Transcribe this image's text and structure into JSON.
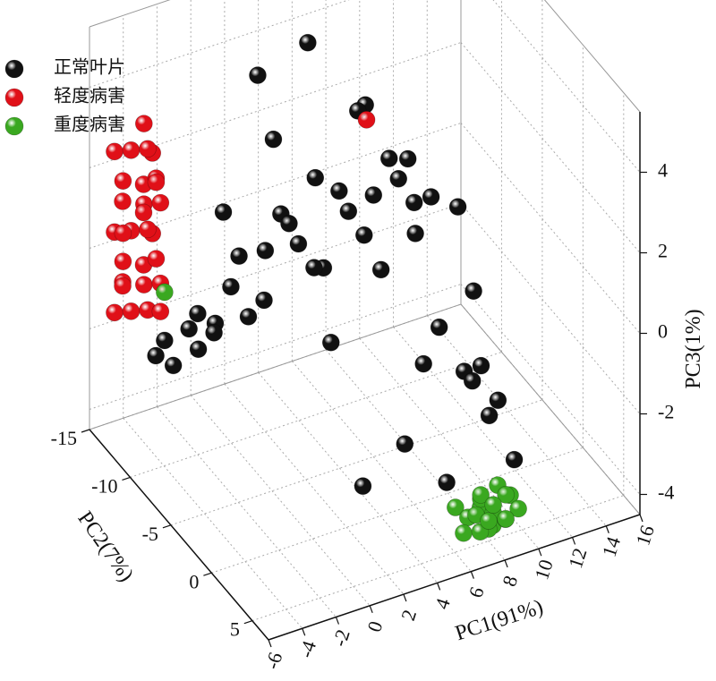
{
  "chart_data": {
    "type": "scatter3d",
    "x_label": "PC1(91%)",
    "y_label": "PC2(7%)",
    "z_label": "PC3(1%)",
    "xlim": [
      -6,
      16
    ],
    "ylim": [
      -15,
      7
    ],
    "zlim": [
      -4.5,
      5.5
    ],
    "xticks": [
      -6,
      -4,
      -2,
      0,
      2,
      4,
      6,
      8,
      10,
      12,
      14,
      16
    ],
    "yticks": [
      -15,
      -10,
      -5,
      0,
      5
    ],
    "zticks": [
      -4,
      -2,
      0,
      2,
      4
    ],
    "grid": true,
    "legend": "upper left",
    "series": [
      {
        "name": "正常叶片",
        "color": "#111111",
        "x": [
          -3,
          -2,
          -1,
          0,
          1,
          2,
          3,
          4,
          5,
          6,
          7,
          8,
          9,
          10,
          -2,
          0,
          2,
          4,
          6,
          8,
          -3,
          -1,
          1,
          3,
          5,
          7,
          9,
          -4,
          -2,
          0,
          2,
          4,
          6,
          8,
          10,
          -1,
          1,
          3,
          5,
          7,
          3,
          5,
          7,
          9,
          11,
          2,
          4,
          6,
          8,
          10
        ],
        "y": [
          -12,
          -10,
          -8,
          -11,
          -6,
          -9,
          -4,
          -7,
          -2,
          -5,
          0,
          -3,
          2,
          -1,
          -13,
          -12,
          -10,
          -8,
          -6,
          -4,
          -9,
          -7,
          -5,
          -3,
          -1,
          1,
          3,
          -11,
          -8,
          -6,
          -4,
          -2,
          0,
          2,
          4,
          -12,
          -10,
          -8,
          -6,
          -4,
          -13,
          -11,
          -9,
          -7,
          -5,
          2,
          3,
          4,
          3,
          2
        ],
        "z": [
          -2,
          -1,
          0,
          1,
          2,
          3,
          -1,
          0,
          1,
          2,
          3,
          -2,
          -1,
          0,
          -3,
          -2,
          0,
          2,
          4,
          1,
          -1,
          1,
          2,
          3,
          4,
          0,
          -2,
          -2,
          -1,
          0,
          1,
          2,
          3,
          -1,
          -3,
          -2.5,
          -1.5,
          0.5,
          1.5,
          2.5,
          3.5,
          4.5,
          3,
          2,
          1,
          -3,
          -2,
          -3,
          -1,
          -2
        ]
      },
      {
        "name": "轻度病害",
        "color": "#e01018",
        "x": [
          -5,
          -4.5,
          -4,
          -3.5,
          -3,
          -5,
          -4.5,
          -4,
          -3.5,
          -3,
          -5,
          -4.5,
          -4,
          -3.5,
          -3,
          -5,
          -4.5,
          -4,
          -3.5,
          -3,
          -5,
          -4.5,
          -4,
          -3.5,
          -3,
          -5,
          -4.5,
          -4,
          -3.5,
          8
        ],
        "y": [
          -14,
          -13,
          -12,
          -13.5,
          -12.5,
          -13,
          -14,
          -12.5,
          -12,
          -13.5,
          -14,
          -13,
          -12,
          -13.5,
          -12.5,
          -13,
          -14,
          -12.5,
          -12,
          -13.5,
          -14,
          -13,
          -12,
          -13.5,
          -12.5,
          -13,
          -14,
          -12.5,
          -12,
          -10
        ],
        "z": [
          -1.5,
          -1.3,
          -1.1,
          -0.9,
          -0.7,
          -0.5,
          -0.3,
          -0.1,
          0.1,
          0.3,
          0.5,
          0.7,
          0.9,
          1.1,
          1.3,
          1.5,
          1.7,
          1.9,
          2.1,
          2.3,
          2.5,
          2.7,
          2.9,
          3.1,
          -1.4,
          -0.6,
          0.4,
          1.2,
          2.0,
          2.4
        ]
      },
      {
        "name": "重度病害",
        "color": "#3aa820",
        "x": [
          7,
          7.5,
          8,
          8.5,
          9,
          9.5,
          10,
          7,
          7.5,
          8,
          8.5,
          9,
          9.5,
          10,
          7.5,
          8.5,
          9.5,
          8,
          9,
          -3
        ],
        "y": [
          3,
          3.5,
          4,
          4.5,
          5,
          3,
          3.5,
          4,
          4.5,
          5,
          3,
          3.5,
          4,
          4.5,
          5,
          3,
          4,
          5,
          3.5,
          -12
        ],
        "z": [
          -4,
          -4.2,
          -3.9,
          -4.3,
          -4.1,
          -3.8,
          -4,
          -4.4,
          -3.9,
          -4.2,
          -4,
          -4.3,
          -3.8,
          -4.1,
          -4.2,
          -3.9,
          -4.4,
          -4,
          -4.1,
          -0.8
        ]
      }
    ]
  }
}
